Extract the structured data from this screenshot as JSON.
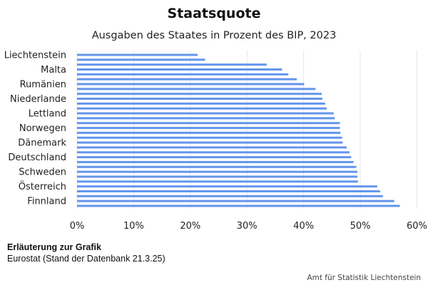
{
  "chart_data": {
    "type": "bar",
    "orientation": "horizontal",
    "title": "Staatsquote",
    "subtitle": "Ausgaben des Staates in Prozent des BIP, 2023",
    "xlabel": "",
    "ylabel": "",
    "xlim": [
      0,
      60
    ],
    "xticks": [
      0,
      10,
      20,
      30,
      40,
      50,
      60
    ],
    "xtick_labels": [
      "0%",
      "10%",
      "20%",
      "30%",
      "40%",
      "50%",
      "60%"
    ],
    "grid": "vertical",
    "bar_color": "#6495ED",
    "categories": [
      "Liechtenstein",
      "",
      "",
      "Malta",
      "",
      "",
      "Rumänien",
      "",
      "",
      "Niederlande",
      "",
      "",
      "Lettland",
      "",
      "",
      "Norwegen",
      "",
      "",
      "Dänemark",
      "",
      "",
      "Deutschland",
      "",
      "",
      "Schweden",
      "",
      "",
      "Österreich",
      "",
      "",
      "Finnland",
      ""
    ],
    "values": [
      21.3,
      22.6,
      33.5,
      36.2,
      37.3,
      38.8,
      40.1,
      42.1,
      43.2,
      43.3,
      43.8,
      44.1,
      45.3,
      45.5,
      46.4,
      46.4,
      46.5,
      46.8,
      46.9,
      47.6,
      48.1,
      48.4,
      48.8,
      49.3,
      49.5,
      49.5,
      49.6,
      53.0,
      53.5,
      54.0,
      56.0,
      57.0
    ]
  },
  "notes": {
    "title": "Erläuterung zur Grafik",
    "text": "Eurostat (Stand der Datenbank 21.3.25)"
  },
  "credit": "Amt für Statistik Liechtenstein"
}
